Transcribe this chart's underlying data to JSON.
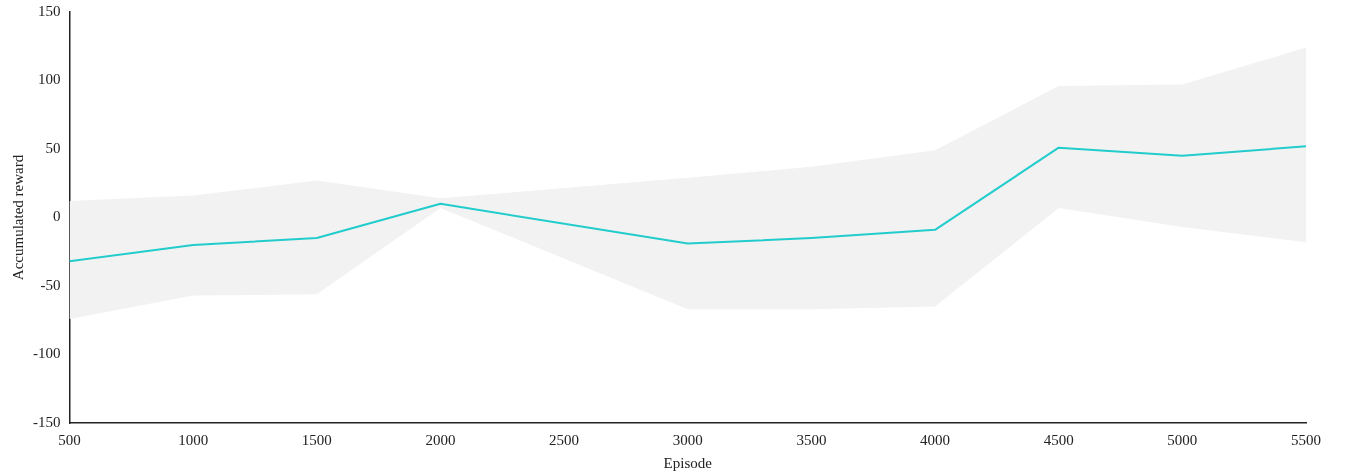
{
  "chart_data": {
    "type": "line",
    "xlabel": "Episode",
    "ylabel": "Accumulated reward",
    "x": [
      500,
      1000,
      1500,
      2000,
      3000,
      3500,
      4000,
      4500,
      5000,
      5500
    ],
    "series": [
      {
        "color": "#22cccc",
        "values": [
          -32,
          -20,
          -15,
          10,
          -19,
          -15,
          -9,
          51,
          45,
          52
        ],
        "lower": [
          -74,
          -57,
          -56,
          7,
          -67,
          -67,
          -65,
          7,
          -7,
          -18
        ],
        "upper": [
          12,
          16,
          27,
          14,
          29,
          37,
          49,
          96,
          97,
          124
        ]
      }
    ],
    "xlim": [
      500,
      5500
    ],
    "xticks": [
      500,
      1000,
      1500,
      2000,
      2500,
      3000,
      3500,
      4000,
      4500,
      5000,
      5500
    ],
    "ylim": [
      -150,
      150
    ],
    "yticks": [
      -150,
      -100,
      -50,
      0,
      50,
      100,
      150
    ],
    "marker": "none",
    "line_style": "solid"
  }
}
